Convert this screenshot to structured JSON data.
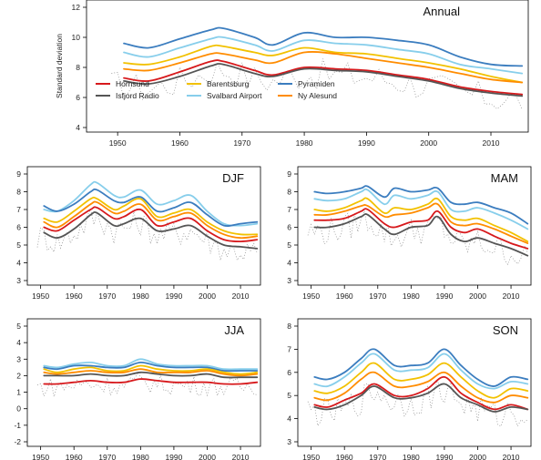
{
  "colors": {
    "Hornsund": "#d7191c",
    "Isfjord Radio": "#555555",
    "Barentsburg": "#f2c100",
    "Svalbard Airport": "#87ceeb",
    "Pyramiden": "#3b7dbf",
    "Ny Alesund": "#ff8c00",
    "raw": "#888888"
  },
  "legend": {
    "items": [
      "Hornsund",
      "Isfjord Radio",
      "Barentsburg",
      "Svalbard Airport",
      "Pyramiden",
      "Ny Alesund"
    ]
  },
  "chart_data": [
    {
      "type": "line",
      "title": "Annual",
      "ylabel": "Standard deviation",
      "xlabel": "",
      "xlim": [
        1945,
        2016
      ],
      "ylim": [
        4,
        12
      ],
      "yticks": [
        4,
        6,
        8,
        10,
        12
      ],
      "xticks": [
        1950,
        1960,
        1970,
        1980,
        1990,
        2000,
        2010
      ],
      "legend_position": "bottom-left",
      "x": [
        1951,
        1955,
        1960,
        1965,
        1967,
        1972,
        1975,
        1980,
        1985,
        1990,
        1995,
        2000,
        2005,
        2010,
        2015
      ],
      "series": [
        {
          "name": "Pyramiden",
          "values": [
            9.6,
            9.3,
            9.9,
            10.5,
            10.6,
            10.0,
            9.5,
            10.3,
            10.0,
            10.0,
            9.8,
            9.5,
            8.7,
            8.2,
            8.1
          ]
        },
        {
          "name": "Svalbard Airport",
          "values": [
            9.0,
            8.7,
            9.3,
            9.9,
            10.0,
            9.5,
            9.1,
            9.8,
            9.6,
            9.5,
            9.2,
            8.9,
            8.2,
            7.9,
            7.6
          ]
        },
        {
          "name": "Barentsburg",
          "values": [
            8.3,
            8.2,
            8.7,
            9.4,
            9.4,
            9.0,
            8.8,
            9.3,
            9.0,
            8.9,
            8.6,
            8.3,
            7.9,
            7.4,
            7.0
          ]
        },
        {
          "name": "Ny Alesund",
          "values": [
            7.9,
            7.8,
            8.3,
            8.9,
            8.9,
            8.5,
            8.3,
            9.0,
            8.9,
            8.6,
            8.3,
            8.0,
            7.6,
            7.2,
            7.0
          ]
        },
        {
          "name": "Hornsund",
          "values": [
            7.3,
            7.1,
            7.7,
            8.4,
            8.4,
            7.8,
            7.5,
            8.0,
            7.9,
            7.8,
            7.5,
            7.2,
            6.7,
            6.4,
            6.2
          ]
        },
        {
          "name": "Isfjord Radio",
          "values": [
            7.1,
            6.9,
            7.4,
            8.1,
            8.2,
            7.6,
            7.4,
            7.9,
            7.8,
            7.7,
            7.4,
            7.1,
            6.6,
            6.3,
            6.1
          ]
        }
      ]
    },
    {
      "type": "line",
      "title": "DJF",
      "xlim": [
        1946,
        2016
      ],
      "ylim": [
        3,
        9
      ],
      "yticks": [
        3,
        4,
        5,
        6,
        7,
        8,
        9
      ],
      "xticks": [
        1950,
        1960,
        1970,
        1980,
        1990,
        2000,
        2010
      ],
      "x": [
        1951,
        1955,
        1960,
        1965,
        1967,
        1972,
        1975,
        1980,
        1985,
        1990,
        1995,
        2000,
        2005,
        2010,
        2015
      ],
      "series": [
        {
          "name": "Svalbard Airport",
          "values": [
            7.0,
            6.9,
            7.5,
            8.4,
            8.5,
            7.8,
            7.7,
            8.1,
            7.3,
            7.5,
            7.8,
            6.9,
            6.2,
            6.1,
            6.2
          ]
        },
        {
          "name": "Pyramiden",
          "values": [
            7.2,
            6.9,
            7.3,
            8.0,
            8.1,
            7.5,
            7.4,
            7.7,
            6.9,
            7.1,
            7.4,
            6.7,
            6.1,
            6.2,
            6.3
          ]
        },
        {
          "name": "Barentsburg",
          "values": [
            6.5,
            6.3,
            6.9,
            7.6,
            7.6,
            7.0,
            7.2,
            7.6,
            6.6,
            6.8,
            7.0,
            6.3,
            5.8,
            5.6,
            5.6
          ]
        },
        {
          "name": "Ny Alesund",
          "values": [
            6.3,
            6.0,
            6.6,
            7.3,
            7.4,
            6.8,
            6.9,
            7.3,
            6.4,
            6.6,
            6.8,
            6.1,
            5.6,
            5.4,
            5.5
          ]
        },
        {
          "name": "Hornsund",
          "values": [
            6.0,
            5.8,
            6.4,
            7.0,
            7.1,
            6.5,
            6.6,
            7.0,
            6.1,
            6.3,
            6.5,
            5.8,
            5.3,
            5.2,
            5.3
          ]
        },
        {
          "name": "Isfjord Radio",
          "values": [
            5.7,
            5.4,
            5.9,
            6.7,
            6.8,
            6.1,
            6.2,
            6.5,
            5.8,
            5.9,
            6.1,
            5.5,
            5.0,
            4.9,
            4.8
          ]
        }
      ]
    },
    {
      "type": "line",
      "title": "MAM",
      "xlim": [
        1946,
        2016
      ],
      "ylim": [
        3,
        9
      ],
      "yticks": [
        3,
        4,
        5,
        6,
        7,
        8,
        9
      ],
      "xticks": [
        1950,
        1960,
        1970,
        1980,
        1990,
        2000,
        2010
      ],
      "x": [
        1951,
        1955,
        1960,
        1965,
        1967,
        1972,
        1975,
        1980,
        1985,
        1988,
        1992,
        1996,
        2000,
        2005,
        2010,
        2015
      ],
      "series": [
        {
          "name": "Pyramiden",
          "values": [
            8.0,
            7.9,
            8.0,
            8.2,
            8.3,
            7.7,
            8.2,
            8.0,
            8.1,
            8.2,
            7.4,
            7.3,
            7.4,
            7.1,
            6.8,
            6.2
          ]
        },
        {
          "name": "Svalbard Airport",
          "values": [
            7.6,
            7.5,
            7.6,
            8.0,
            8.1,
            7.3,
            7.8,
            7.6,
            7.8,
            8.0,
            7.0,
            6.9,
            7.1,
            6.8,
            6.4,
            5.9
          ]
        },
        {
          "name": "Barentsburg",
          "values": [
            7.0,
            6.9,
            7.1,
            7.5,
            7.6,
            6.8,
            7.1,
            7.0,
            7.3,
            7.6,
            6.6,
            6.4,
            6.5,
            6.1,
            5.7,
            5.2
          ]
        },
        {
          "name": "Ny Alesund",
          "values": [
            6.7,
            6.7,
            6.9,
            7.2,
            7.2,
            6.6,
            6.7,
            6.8,
            7.1,
            7.3,
            6.3,
            6.1,
            6.2,
            5.9,
            5.5,
            5.1
          ]
        },
        {
          "name": "Hornsund",
          "values": [
            6.4,
            6.4,
            6.5,
            6.9,
            7.0,
            6.2,
            6.0,
            6.3,
            6.4,
            6.9,
            6.0,
            5.7,
            5.9,
            5.5,
            5.1,
            4.8
          ]
        },
        {
          "name": "Isfjord Radio",
          "values": [
            6.0,
            6.0,
            6.2,
            6.6,
            6.7,
            5.9,
            5.6,
            6.0,
            6.1,
            6.6,
            5.6,
            5.2,
            5.4,
            5.1,
            4.8,
            4.4
          ]
        }
      ]
    },
    {
      "type": "line",
      "title": "JJA",
      "xlim": [
        1946,
        2016
      ],
      "ylim": [
        -2,
        5
      ],
      "yticks": [
        -2,
        -1,
        0,
        1,
        2,
        3,
        4,
        5
      ],
      "xticks": [
        1950,
        1960,
        1970,
        1980,
        1990,
        2000,
        2010
      ],
      "x": [
        1951,
        1955,
        1960,
        1965,
        1970,
        1975,
        1980,
        1985,
        1990,
        1995,
        2000,
        2005,
        2010,
        2015
      ],
      "series": [
        {
          "name": "Svalbard Airport",
          "values": [
            2.6,
            2.5,
            2.7,
            2.8,
            2.6,
            2.6,
            3.0,
            2.7,
            2.6,
            2.6,
            2.6,
            2.4,
            2.4,
            2.4
          ]
        },
        {
          "name": "Pyramiden",
          "values": [
            2.5,
            2.4,
            2.6,
            2.6,
            2.5,
            2.5,
            2.8,
            2.6,
            2.5,
            2.5,
            2.5,
            2.3,
            2.3,
            2.3
          ]
        },
        {
          "name": "Barentsburg",
          "values": [
            2.4,
            2.2,
            2.4,
            2.5,
            2.3,
            2.3,
            2.6,
            2.4,
            2.3,
            2.3,
            2.4,
            2.2,
            2.1,
            2.2
          ]
        },
        {
          "name": "Ny Alesund",
          "values": [
            2.2,
            2.1,
            2.2,
            2.3,
            2.2,
            2.2,
            2.4,
            2.2,
            2.2,
            2.2,
            2.3,
            2.1,
            2.0,
            2.1
          ]
        },
        {
          "name": "Isfjord Radio",
          "values": [
            2.0,
            2.0,
            2.0,
            2.1,
            2.0,
            2.0,
            2.2,
            2.1,
            2.0,
            2.0,
            2.1,
            1.9,
            1.9,
            1.9
          ]
        },
        {
          "name": "Hornsund",
          "values": [
            1.5,
            1.5,
            1.6,
            1.7,
            1.6,
            1.6,
            1.8,
            1.7,
            1.6,
            1.6,
            1.6,
            1.5,
            1.5,
            1.6
          ]
        }
      ]
    },
    {
      "type": "line",
      "title": "SON",
      "xlim": [
        1946,
        2016
      ],
      "ylim": [
        3,
        8
      ],
      "yticks": [
        3,
        4,
        5,
        6,
        7,
        8
      ],
      "xticks": [
        1950,
        1960,
        1970,
        1980,
        1990,
        2000,
        2010
      ],
      "x": [
        1951,
        1955,
        1960,
        1965,
        1969,
        1975,
        1980,
        1985,
        1990,
        1995,
        2000,
        2005,
        2010,
        2015
      ],
      "series": [
        {
          "name": "Pyramiden",
          "values": [
            5.8,
            5.7,
            6.0,
            6.6,
            7.0,
            6.3,
            6.3,
            6.4,
            7.0,
            6.3,
            5.7,
            5.4,
            5.8,
            5.7
          ]
        },
        {
          "name": "Svalbard Airport",
          "values": [
            5.5,
            5.4,
            5.8,
            6.4,
            6.8,
            6.1,
            6.1,
            6.2,
            6.8,
            6.1,
            5.5,
            5.3,
            5.6,
            5.5
          ]
        },
        {
          "name": "Barentsburg",
          "values": [
            5.2,
            5.1,
            5.4,
            6.0,
            6.4,
            5.7,
            5.7,
            5.9,
            6.4,
            5.8,
            5.2,
            4.9,
            5.3,
            5.2
          ]
        },
        {
          "name": "Ny Alesund",
          "values": [
            4.9,
            4.8,
            5.1,
            5.7,
            6.0,
            5.4,
            5.4,
            5.6,
            6.0,
            5.4,
            4.9,
            4.7,
            5.0,
            4.9
          ]
        },
        {
          "name": "Hornsund",
          "values": [
            4.6,
            4.5,
            4.8,
            5.1,
            5.5,
            5.0,
            5.0,
            5.3,
            5.8,
            5.1,
            4.7,
            4.4,
            4.6,
            4.4
          ]
        },
        {
          "name": "Isfjord Radio",
          "values": [
            4.5,
            4.4,
            4.6,
            5.0,
            5.4,
            4.9,
            4.9,
            5.1,
            5.5,
            4.9,
            4.6,
            4.3,
            4.5,
            4.4
          ]
        }
      ]
    }
  ]
}
